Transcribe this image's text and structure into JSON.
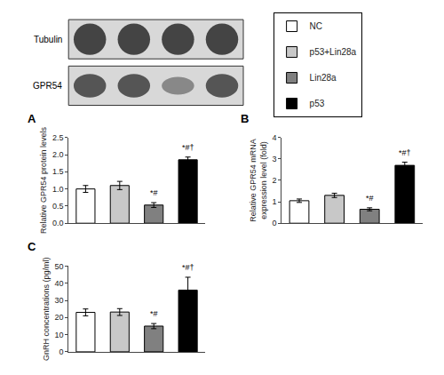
{
  "chart_data": [
    {
      "type": "western_blot",
      "annotations": [
        "Tubulin",
        "GPR54"
      ]
    },
    {
      "type": "bar",
      "title": "A",
      "categories": [
        "NC",
        "p53+Lin28a",
        "Lin28a",
        "p53"
      ],
      "values": [
        1.0,
        1.1,
        0.53,
        1.85
      ],
      "errors": [
        0.1,
        0.12,
        0.07,
        0.08
      ],
      "colors": [
        "#ffffff",
        "#c8c8c8",
        "#808080",
        "#000000"
      ],
      "ylabel": "Relative GPR54 protein levels",
      "ylim": [
        0,
        2.5
      ],
      "yticks": [
        {
          "value": 0,
          "label": "0.0"
        },
        0.5,
        {
          "value": 1,
          "label": "1.0"
        },
        1.5,
        {
          "value": 2,
          "label": "2.0"
        },
        2.5
      ],
      "annotations": [
        {
          "x": "Lin28a",
          "text": "*#"
        },
        {
          "x": "p53",
          "text": "*#†"
        }
      ],
      "legend": "upper right",
      "grid": false,
      "tick_labels": "y"
    },
    {
      "type": "bar",
      "title": "B",
      "categories": [
        "NC",
        "p53+Lin28a",
        "Lin28a",
        "p53"
      ],
      "values": [
        1.05,
        1.3,
        0.65,
        2.7
      ],
      "errors": [
        0.08,
        0.1,
        0.07,
        0.15
      ],
      "colors": [
        "#ffffff",
        "#c8c8c8",
        "#808080",
        "#000000"
      ],
      "ylabel": "Relative GPR54 mRNA\nexpression level (fold)",
      "ylim": [
        0,
        4
      ],
      "yticks": [
        0,
        1,
        2,
        3,
        4
      ],
      "annotations": [
        {
          "x": "Lin28a",
          "text": "*#"
        },
        {
          "x": "p53",
          "text": "*#†"
        }
      ],
      "grid": false,
      "tick_labels": "y"
    },
    {
      "type": "bar",
      "title": "C",
      "categories": [
        "NC",
        "p53+Lin28a",
        "Lin28a",
        "p53"
      ],
      "values": [
        23.0,
        23.2,
        15.0,
        36.0
      ],
      "errors": [
        2.0,
        2.0,
        1.5,
        7.5
      ],
      "colors": [
        "#ffffff",
        "#c8c8c8",
        "#808080",
        "#000000"
      ],
      "ylabel": "GnRH concentrations (pg/ml)",
      "ylim": [
        0,
        50
      ],
      "yticks": [
        0,
        10,
        20,
        30,
        40,
        50
      ],
      "annotations": [
        {
          "x": "Lin28a",
          "text": "*#"
        },
        {
          "x": "p53",
          "text": "*#†"
        }
      ],
      "grid": false,
      "tick_labels": "y"
    }
  ]
}
